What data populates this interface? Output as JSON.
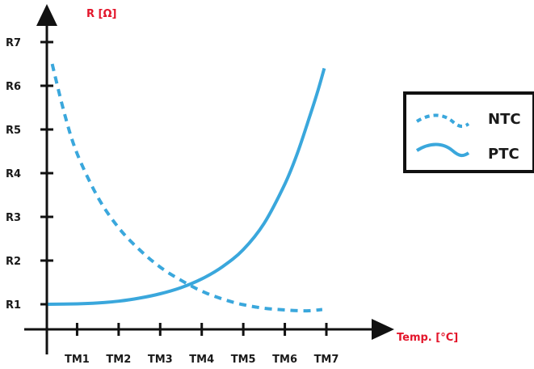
{
  "chart_data": {
    "type": "line",
    "title": "",
    "xlabel": "Temp. [°C]",
    "ylabel": "R [Ω]",
    "categories": [
      "TM1",
      "TM2",
      "TM3",
      "TM4",
      "TM5",
      "TM6",
      "TM7"
    ],
    "y_ticks": [
      "R1",
      "R2",
      "R3",
      "R4",
      "R5",
      "R6",
      "R7"
    ],
    "xlim": [
      0.3,
      7.0
    ],
    "ylim": [
      0.7,
      7.4
    ],
    "grid": false,
    "legend_position": "right",
    "series": [
      {
        "name": "NTC",
        "style": "dashed",
        "x": [
          0.4,
          0.7,
          1.0,
          1.5,
          2.0,
          2.5,
          3.0,
          3.5,
          4.0,
          4.5,
          5.0,
          5.5,
          6.0,
          6.5,
          6.9
        ],
        "y": [
          6.5,
          5.35,
          4.45,
          3.45,
          2.75,
          2.25,
          1.85,
          1.55,
          1.3,
          1.12,
          0.99,
          0.91,
          0.87,
          0.85,
          0.88
        ]
      },
      {
        "name": "PTC",
        "style": "solid",
        "x": [
          0.3,
          1.0,
          1.5,
          2.0,
          2.5,
          3.0,
          3.5,
          4.0,
          4.5,
          5.0,
          5.5,
          6.0,
          6.3,
          6.6,
          6.8,
          6.95
        ],
        "y": [
          1.0,
          1.01,
          1.03,
          1.07,
          1.14,
          1.24,
          1.38,
          1.58,
          1.86,
          2.25,
          2.85,
          3.75,
          4.45,
          5.3,
          5.9,
          6.4
        ]
      }
    ]
  },
  "colors": {
    "curve": "#3aa7dc",
    "axis": "#111111",
    "accent_label": "#e3162b"
  }
}
